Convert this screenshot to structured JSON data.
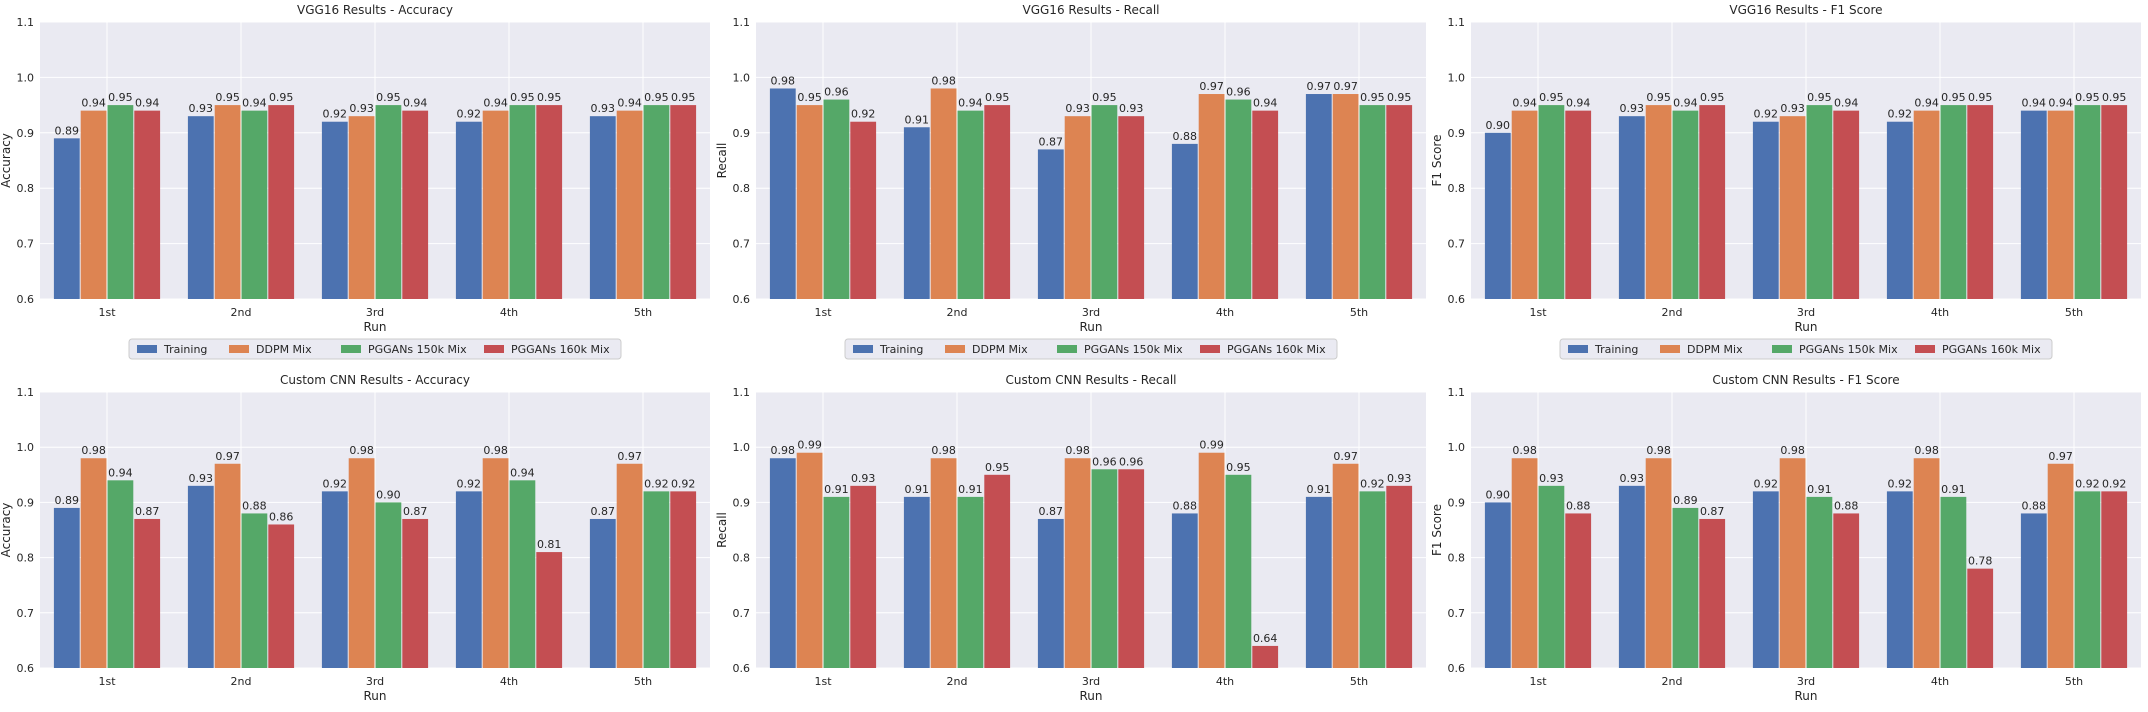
{
  "colors": {
    "background": "#eaeaf2",
    "grid": "#ffffff",
    "series": [
      "#4c72b0",
      "#dd8452",
      "#55a868",
      "#c44e52"
    ]
  },
  "legend": {
    "items": [
      "Training",
      "DDPM Mix",
      "PGGANs 150k Mix",
      "PGGANs 160k Mix"
    ]
  },
  "chart_data": [
    {
      "type": "bar",
      "title": "VGG16 Results - Accuracy",
      "xlabel": "Run",
      "ylabel": "Accuracy",
      "ylim": [
        0.6,
        1.1
      ],
      "yticks": [
        "0.6",
        "0.7",
        "0.8",
        "0.9",
        "1.0",
        "1.1"
      ],
      "categories": [
        "1st",
        "2nd",
        "3rd",
        "4th",
        "5th"
      ],
      "grid": true,
      "legend_position": "below",
      "series": [
        {
          "name": "Training",
          "values": [
            0.89,
            0.93,
            0.92,
            0.92,
            0.93
          ],
          "labels": [
            "0.89",
            "0.93",
            "0.92",
            "0.92",
            "0.93"
          ]
        },
        {
          "name": "DDPM Mix",
          "values": [
            0.94,
            0.95,
            0.93,
            0.94,
            0.94
          ],
          "labels": [
            "0.94",
            "0.95",
            "0.93",
            "0.94",
            "0.94"
          ]
        },
        {
          "name": "PGGANs 150k Mix",
          "values": [
            0.95,
            0.94,
            0.95,
            0.95,
            0.95
          ],
          "labels": [
            "0.95",
            "0.94",
            "0.95",
            "0.95",
            "0.95"
          ]
        },
        {
          "name": "PGGANs 160k Mix",
          "values": [
            0.94,
            0.95,
            0.94,
            0.95,
            0.95
          ],
          "labels": [
            "0.94",
            "0.95",
            "0.94",
            "0.95",
            "0.95"
          ]
        }
      ]
    },
    {
      "type": "bar",
      "title": "VGG16 Results - Recall",
      "xlabel": "Run",
      "ylabel": "Recall",
      "ylim": [
        0.6,
        1.1
      ],
      "yticks": [
        "0.6",
        "0.7",
        "0.8",
        "0.9",
        "1.0",
        "1.1"
      ],
      "categories": [
        "1st",
        "2nd",
        "3rd",
        "4th",
        "5th"
      ],
      "grid": true,
      "legend_position": "below",
      "series": [
        {
          "name": "Training",
          "values": [
            0.98,
            0.91,
            0.87,
            0.88,
            0.97
          ],
          "labels": [
            "0.98",
            "0.91",
            "0.87",
            "0.88",
            "0.97"
          ]
        },
        {
          "name": "DDPM Mix",
          "values": [
            0.95,
            0.98,
            0.93,
            0.97,
            0.97
          ],
          "labels": [
            "0.95",
            "0.98",
            "0.93",
            "0.97",
            "0.97"
          ]
        },
        {
          "name": "PGGANs 150k Mix",
          "values": [
            0.96,
            0.94,
            0.95,
            0.96,
            0.95
          ],
          "labels": [
            "0.96",
            "0.94",
            "0.95",
            "0.96",
            "0.95"
          ]
        },
        {
          "name": "PGGANs 160k Mix",
          "values": [
            0.92,
            0.95,
            0.93,
            0.94,
            0.95
          ],
          "labels": [
            "0.92",
            "0.95",
            "0.93",
            "0.94",
            "0.95"
          ]
        }
      ]
    },
    {
      "type": "bar",
      "title": "VGG16 Results - F1 Score",
      "xlabel": "Run",
      "ylabel": "F1 Score",
      "ylim": [
        0.6,
        1.1
      ],
      "yticks": [
        "0.6",
        "0.7",
        "0.8",
        "0.9",
        "1.0",
        "1.1"
      ],
      "categories": [
        "1st",
        "2nd",
        "3rd",
        "4th",
        "5th"
      ],
      "grid": true,
      "legend_position": "below",
      "series": [
        {
          "name": "Training",
          "values": [
            0.9,
            0.93,
            0.92,
            0.92,
            0.94
          ],
          "labels": [
            "0.90",
            "0.93",
            "0.92",
            "0.92",
            "0.94"
          ]
        },
        {
          "name": "DDPM Mix",
          "values": [
            0.94,
            0.95,
            0.93,
            0.94,
            0.94
          ],
          "labels": [
            "0.94",
            "0.95",
            "0.93",
            "0.94",
            "0.94"
          ]
        },
        {
          "name": "PGGANs 150k Mix",
          "values": [
            0.95,
            0.94,
            0.95,
            0.95,
            0.95
          ],
          "labels": [
            "0.95",
            "0.94",
            "0.95",
            "0.95",
            "0.95"
          ]
        },
        {
          "name": "PGGANs 160k Mix",
          "values": [
            0.94,
            0.95,
            0.94,
            0.95,
            0.95
          ],
          "labels": [
            "0.94",
            "0.95",
            "0.94",
            "0.95",
            "0.95"
          ]
        }
      ]
    },
    {
      "type": "bar",
      "title": "Custom CNN Results - Accuracy",
      "xlabel": "Run",
      "ylabel": "Accuracy",
      "ylim": [
        0.6,
        1.1
      ],
      "yticks": [
        "0.6",
        "0.7",
        "0.8",
        "0.9",
        "1.0",
        "1.1"
      ],
      "categories": [
        "1st",
        "2nd",
        "3rd",
        "4th",
        "5th"
      ],
      "grid": true,
      "series": [
        {
          "name": "Training",
          "values": [
            0.89,
            0.93,
            0.92,
            0.92,
            0.87
          ],
          "labels": [
            "0.89",
            "0.93",
            "0.92",
            "0.92",
            "0.87"
          ]
        },
        {
          "name": "DDPM Mix",
          "values": [
            0.98,
            0.97,
            0.98,
            0.98,
            0.97
          ],
          "labels": [
            "0.98",
            "0.97",
            "0.98",
            "0.98",
            "0.97"
          ]
        },
        {
          "name": "PGGANs 150k Mix",
          "values": [
            0.94,
            0.88,
            0.9,
            0.94,
            0.92
          ],
          "labels": [
            "0.94",
            "0.88",
            "0.90",
            "0.94",
            "0.92"
          ]
        },
        {
          "name": "PGGANs 160k Mix",
          "values": [
            0.87,
            0.86,
            0.87,
            0.81,
            0.92
          ],
          "labels": [
            "0.87",
            "0.86",
            "0.87",
            "0.81",
            "0.92"
          ]
        }
      ]
    },
    {
      "type": "bar",
      "title": "Custom CNN Results - Recall",
      "xlabel": "Run",
      "ylabel": "Recall",
      "ylim": [
        0.6,
        1.1
      ],
      "yticks": [
        "0.6",
        "0.7",
        "0.8",
        "0.9",
        "1.0",
        "1.1"
      ],
      "categories": [
        "1st",
        "2nd",
        "3rd",
        "4th",
        "5th"
      ],
      "grid": true,
      "series": [
        {
          "name": "Training",
          "values": [
            0.98,
            0.91,
            0.87,
            0.88,
            0.91
          ],
          "labels": [
            "0.98",
            "0.91",
            "0.87",
            "0.88",
            "0.91"
          ]
        },
        {
          "name": "DDPM Mix",
          "values": [
            0.99,
            0.98,
            0.98,
            0.99,
            0.97
          ],
          "labels": [
            "0.99",
            "0.98",
            "0.98",
            "0.99",
            "0.97"
          ]
        },
        {
          "name": "PGGANs 150k Mix",
          "values": [
            0.91,
            0.91,
            0.96,
            0.95,
            0.92
          ],
          "labels": [
            "0.91",
            "0.91",
            "0.96",
            "0.95",
            "0.92"
          ]
        },
        {
          "name": "PGGANs 160k Mix",
          "values": [
            0.93,
            0.95,
            0.96,
            0.64,
            0.93
          ],
          "labels": [
            "0.93",
            "0.95",
            "0.96",
            "0.64",
            "0.93"
          ]
        }
      ]
    },
    {
      "type": "bar",
      "title": "Custom CNN Results - F1 Score",
      "xlabel": "Run",
      "ylabel": "F1 Score",
      "ylim": [
        0.6,
        1.1
      ],
      "yticks": [
        "0.6",
        "0.7",
        "0.8",
        "0.9",
        "1.0",
        "1.1"
      ],
      "categories": [
        "1st",
        "2nd",
        "3rd",
        "4th",
        "5th"
      ],
      "grid": true,
      "series": [
        {
          "name": "Training",
          "values": [
            0.9,
            0.93,
            0.92,
            0.92,
            0.88
          ],
          "labels": [
            "0.90",
            "0.93",
            "0.92",
            "0.92",
            "0.88"
          ]
        },
        {
          "name": "DDPM Mix",
          "values": [
            0.98,
            0.98,
            0.98,
            0.98,
            0.97
          ],
          "labels": [
            "0.98",
            "0.98",
            "0.98",
            "0.98",
            "0.97"
          ]
        },
        {
          "name": "PGGANs 150k Mix",
          "values": [
            0.93,
            0.89,
            0.91,
            0.91,
            0.92
          ],
          "labels": [
            "0.93",
            "0.89",
            "0.91",
            "0.91",
            "0.92"
          ]
        },
        {
          "name": "PGGANs 160k Mix",
          "values": [
            0.88,
            0.87,
            0.88,
            0.78,
            0.92
          ],
          "labels": [
            "0.88",
            "0.87",
            "0.88",
            "0.78",
            "0.92"
          ]
        }
      ]
    }
  ]
}
